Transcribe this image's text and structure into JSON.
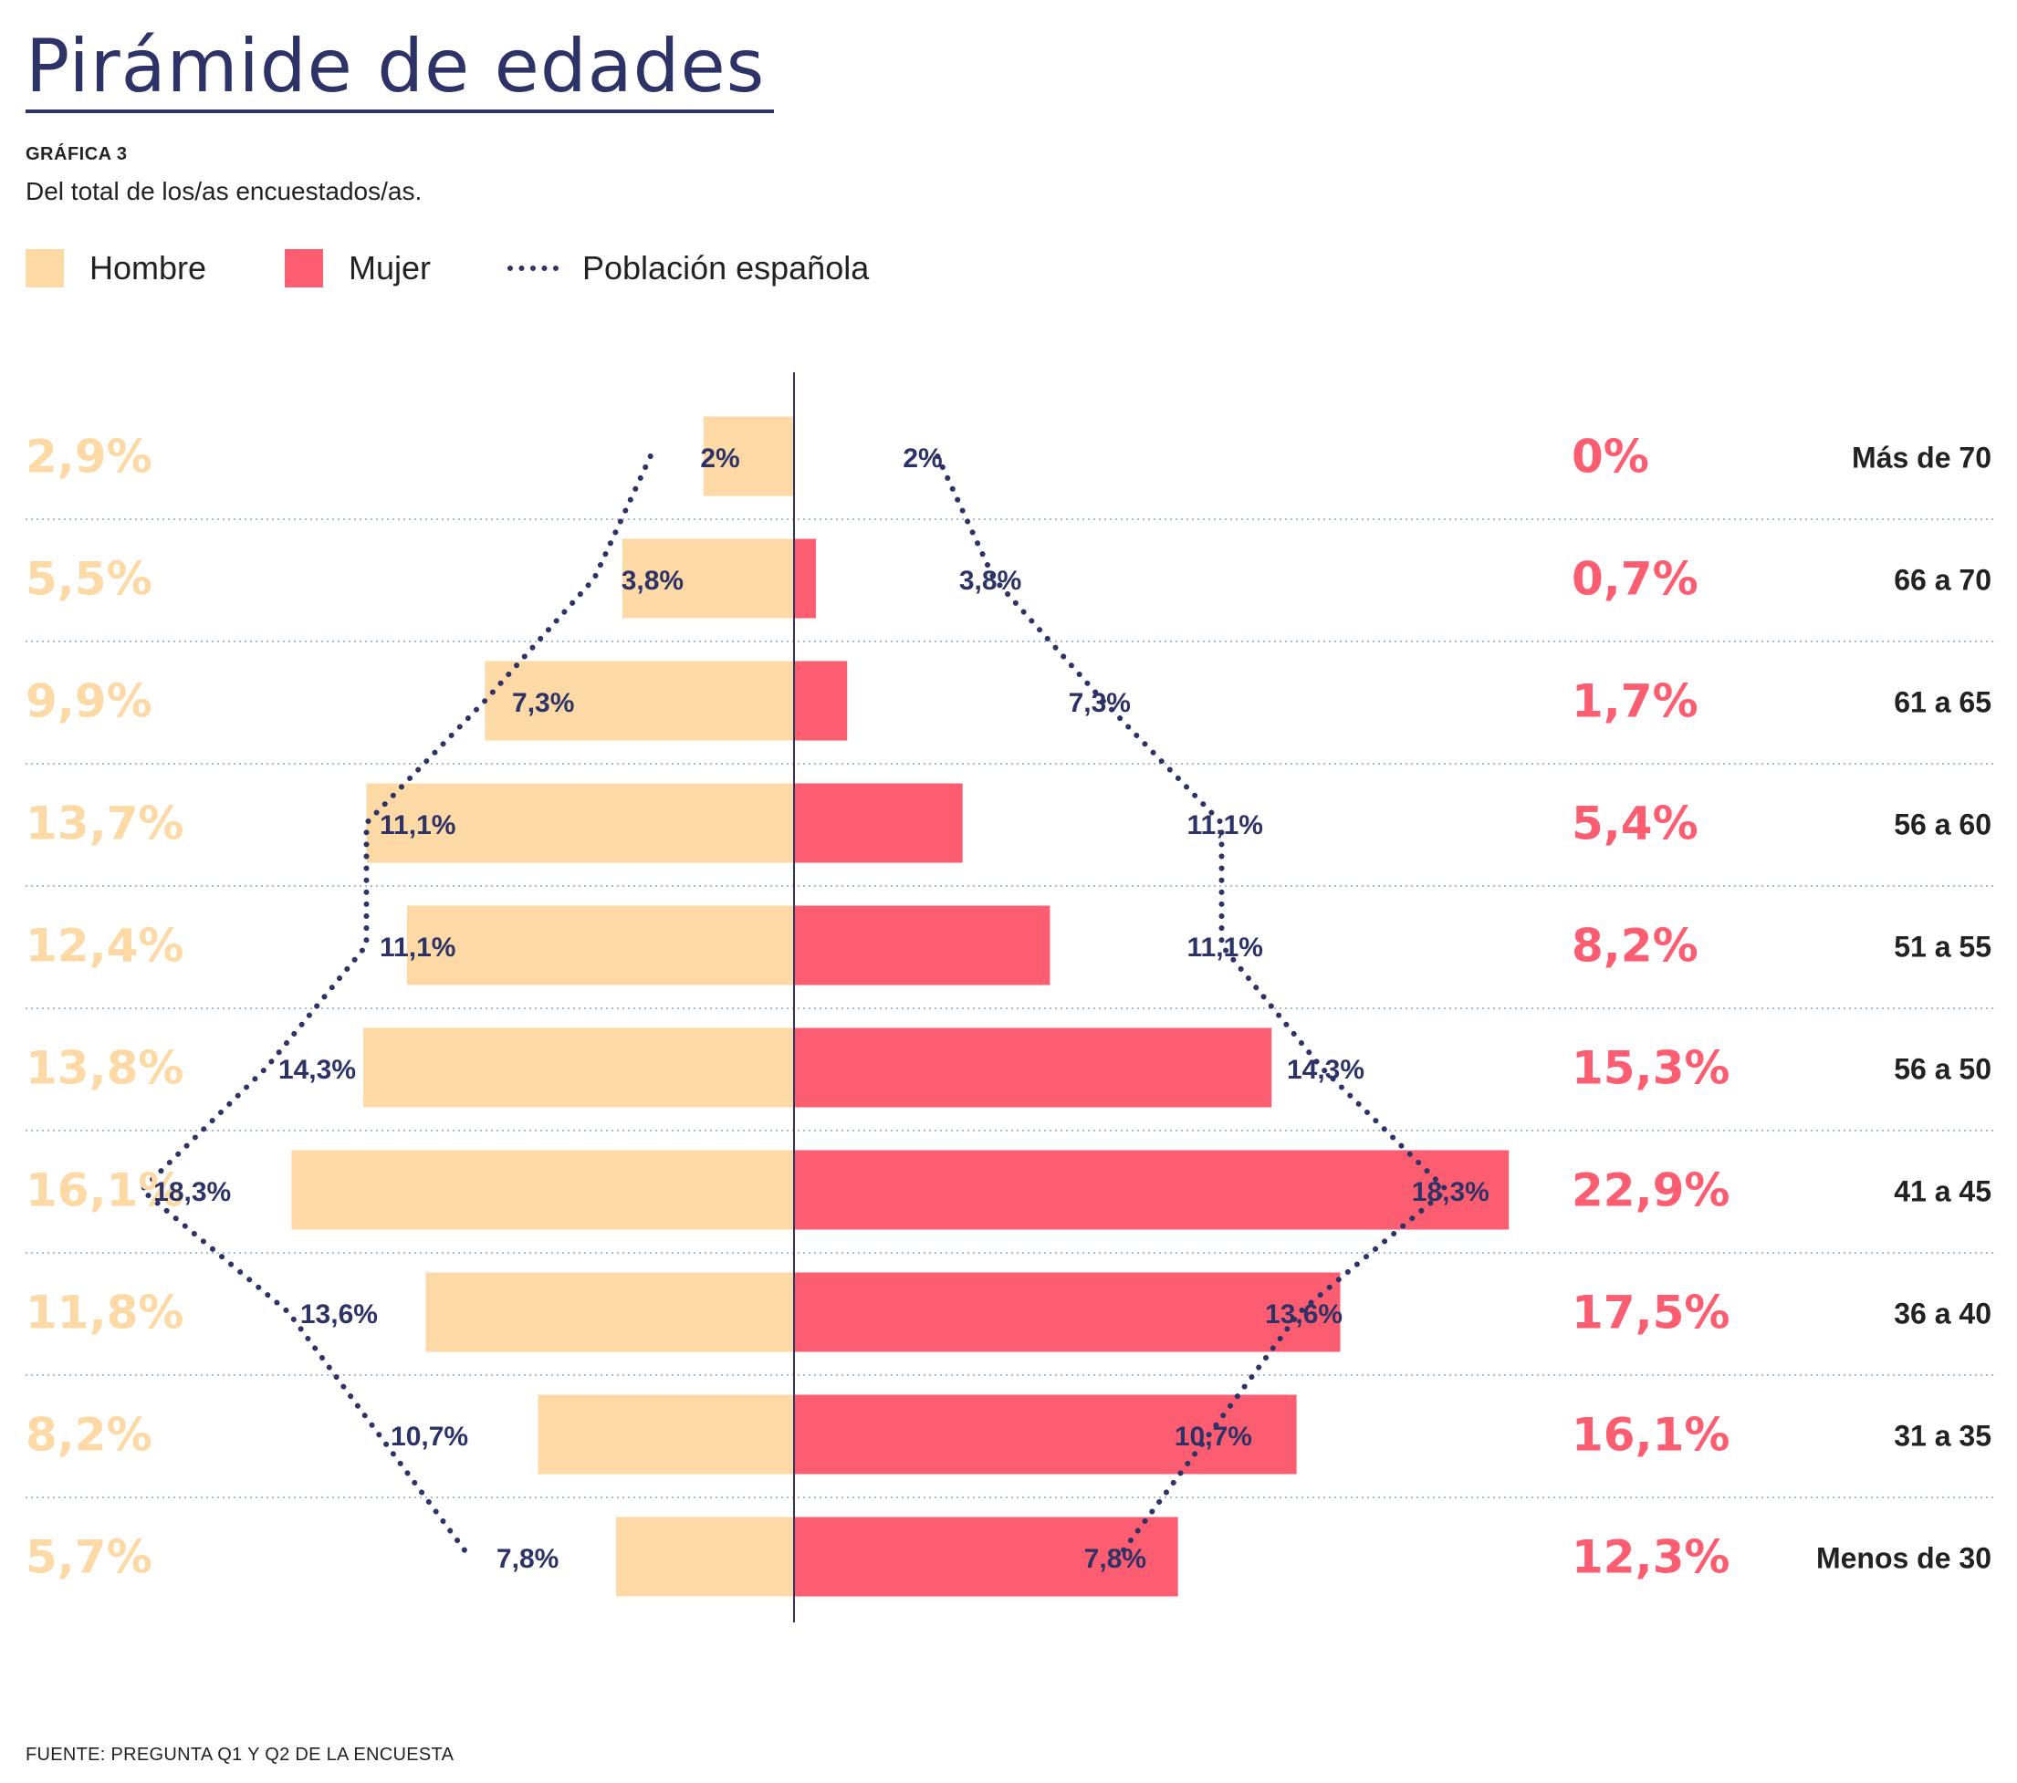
{
  "title": "Pirámide de edades",
  "label": "GRÁFICA 3",
  "subtitle": "Del total de los/as encuestados/as.",
  "source": "FUENTE: PREGUNTA Q1 Y Q2 DE LA ENCUESTA",
  "colors": {
    "hombre": "#fcd9a5",
    "mujer": "#fd5d70",
    "poblacion": "#2d3366",
    "age_text": "#222222",
    "grid": "#8aa4cc"
  },
  "legend": [
    {
      "name": "Hombre",
      "marker": "square-swatch"
    },
    {
      "name": "Mujer",
      "marker": "square-swatch"
    },
    {
      "name": "Población española",
      "marker": "dotted-line"
    }
  ],
  "chart_data": {
    "type": "bar",
    "orientation": "horizontal population pyramid",
    "categories": [
      "Más de 70",
      "66 a 70",
      "61 a 65",
      "56 a 60",
      "51 a 55",
      "56 a 50",
      "41 a 45",
      "36 a 40",
      "31 a 35",
      "Menos de 30"
    ],
    "series": [
      {
        "name": "Hombre",
        "values": [
          2.9,
          5.5,
          9.9,
          13.7,
          12.4,
          13.8,
          16.1,
          11.8,
          8.2,
          5.7
        ],
        "labels": [
          "2,9%",
          "5,5%",
          "9,9%",
          "13,7%",
          "12,4%",
          "13,8%",
          "16,1%",
          "11,8%",
          "8,2%",
          "5,7%"
        ]
      },
      {
        "name": "Mujer",
        "values": [
          0,
          0.7,
          1.7,
          5.4,
          8.2,
          15.3,
          22.9,
          17.5,
          16.1,
          12.3
        ],
        "labels": [
          "0%",
          "0,7%",
          "1,7%",
          "5,4%",
          "8,2%",
          "15,3%",
          "22,9%",
          "17,5%",
          "16,1%",
          "12,3%"
        ]
      },
      {
        "name": "Población española",
        "values": [
          2,
          3.8,
          7.3,
          11.1,
          11.1,
          14.3,
          18.3,
          13.6,
          10.7,
          7.8
        ],
        "labels": [
          "2%",
          "3,8%",
          "7,3%",
          "11,1%",
          "11,1%",
          "14,3%",
          "18,3%",
          "13,6%",
          "10,7%",
          "7,8%"
        ]
      }
    ],
    "grid": "dotted separators between age groups",
    "legend_position": "top-left"
  }
}
